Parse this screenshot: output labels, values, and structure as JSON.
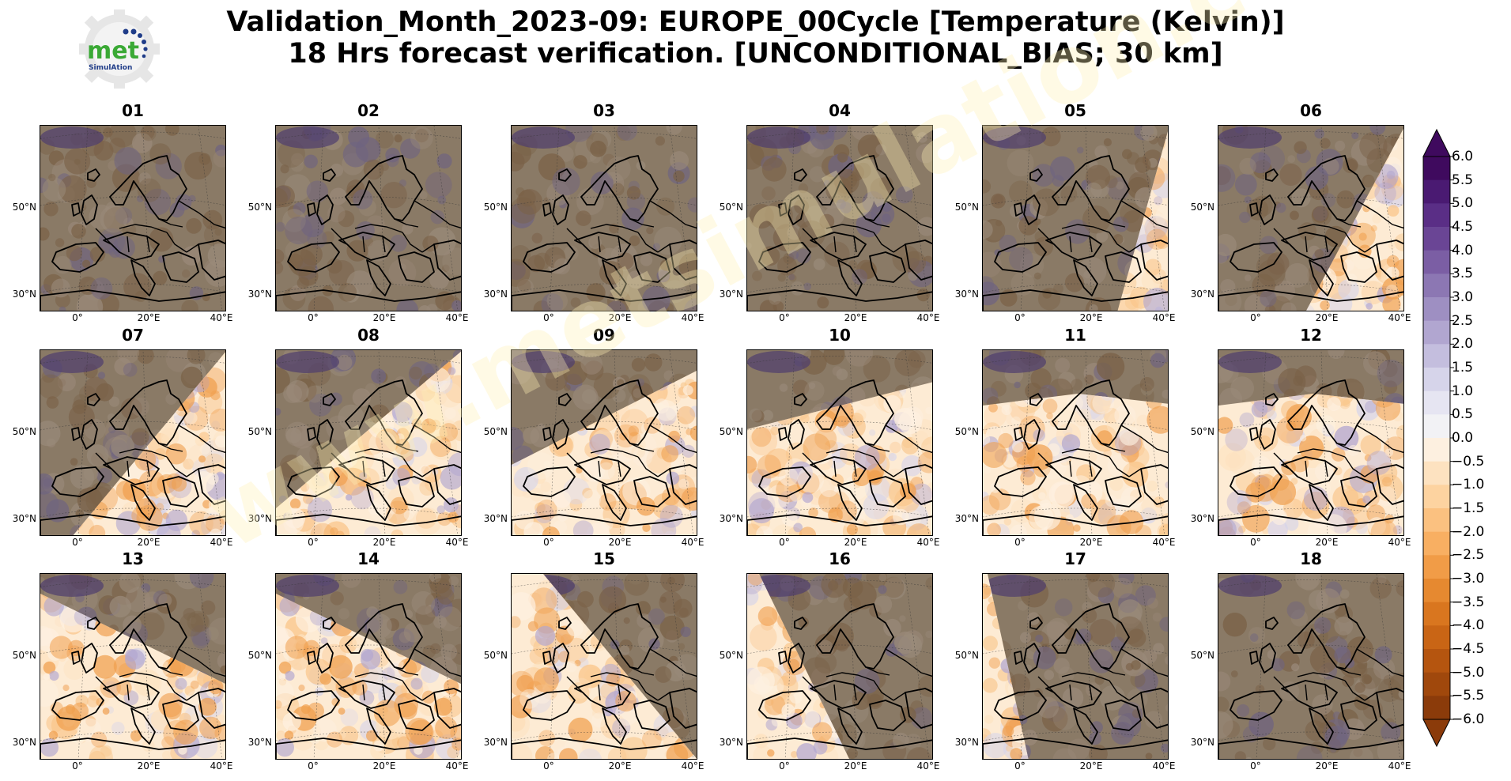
{
  "logo": {
    "text": "met",
    "subtext": "SimulAtion"
  },
  "title": {
    "line1": "Validation_Month_2023-09: EUROPE_00Cycle [Temperature (Kelvin)]",
    "line2": "18 Hrs forecast verification. [UNCONDITIONAL_BIAS; 30 km]"
  },
  "watermark": "www.metsimulation.com",
  "chart_data": {
    "type": "heatmap",
    "panels": [
      {
        "label": "01",
        "coverage": "none"
      },
      {
        "label": "02",
        "coverage": "none"
      },
      {
        "label": "03",
        "coverage": "none"
      },
      {
        "label": "04",
        "coverage": "none"
      },
      {
        "label": "05",
        "coverage": "southeast-edge"
      },
      {
        "label": "06",
        "coverage": "southeast"
      },
      {
        "label": "07",
        "coverage": "southeast-half"
      },
      {
        "label": "08",
        "coverage": "southeast-large"
      },
      {
        "label": "09",
        "coverage": "south-large"
      },
      {
        "label": "10",
        "coverage": "south"
      },
      {
        "label": "11",
        "coverage": "most"
      },
      {
        "label": "12",
        "coverage": "most"
      },
      {
        "label": "13",
        "coverage": "southwest-half"
      },
      {
        "label": "14",
        "coverage": "southwest-half"
      },
      {
        "label": "15",
        "coverage": "west"
      },
      {
        "label": "16",
        "coverage": "west-narrow"
      },
      {
        "label": "17",
        "coverage": "west-edge"
      },
      {
        "label": "18",
        "coverage": "none"
      }
    ],
    "lat_ticks": [
      "50°N",
      "30°N"
    ],
    "lon_ticks": [
      "0°",
      "20°E",
      "40°E"
    ],
    "colorbar": {
      "ticks": [
        "6.0",
        "5.5",
        "5.0",
        "4.5",
        "4.0",
        "3.5",
        "3.0",
        "2.5",
        "2.0",
        "1.5",
        "1.0",
        "0.5",
        "0.0",
        "−0.5",
        "−1.0",
        "−1.5",
        "−2.0",
        "−2.5",
        "−3.0",
        "−3.5",
        "−4.0",
        "−4.5",
        "−5.0",
        "−5.5",
        "−6.0"
      ],
      "min": -6.0,
      "max": 6.0,
      "step": 0.5,
      "extend": "both",
      "colors": [
        "#3f0a5e",
        "#4a1a72",
        "#5a2e86",
        "#6a4595",
        "#7b5ea4",
        "#8c77b3",
        "#9e8fc2",
        "#b1a6d0",
        "#c4bede",
        "#d6d4ea",
        "#e6e5f2",
        "#f2f2f5",
        "#fdf0e0",
        "#fde2c0",
        "#fdd3a0",
        "#fbc180",
        "#f8af62",
        "#f19c47",
        "#e68930",
        "#d9761f",
        "#c96515",
        "#b5550f",
        "#a0480c",
        "#8b3b0a"
      ]
    }
  }
}
